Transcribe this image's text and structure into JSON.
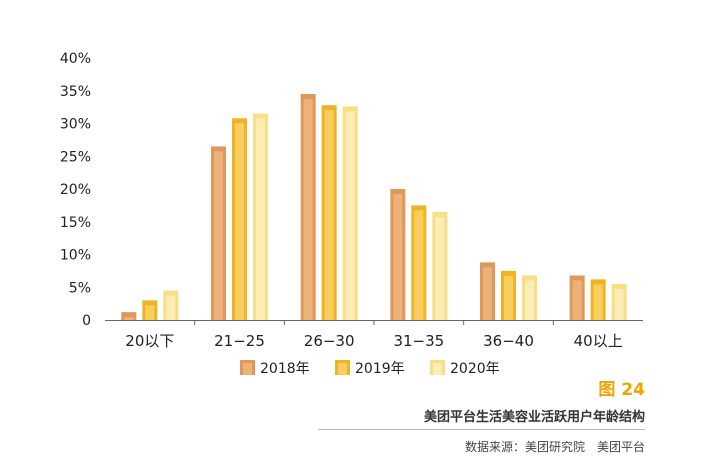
{
  "chart_data": {
    "type": "bar",
    "categories": [
      "20以下",
      "21−25",
      "26−30",
      "31−35",
      "36−40",
      "40以上"
    ],
    "series": [
      {
        "name": "2018年",
        "values": [
          1.2,
          26.5,
          34.5,
          20.0,
          8.8,
          6.8
        ],
        "color": "#e0985a",
        "inner": "#edb27a"
      },
      {
        "name": "2019年",
        "values": [
          3.0,
          30.8,
          32.8,
          17.5,
          7.5,
          6.2
        ],
        "color": "#f0b323",
        "inner": "#f8cf5e"
      },
      {
        "name": "2020年",
        "values": [
          4.5,
          31.5,
          32.6,
          16.5,
          6.8,
          5.5
        ],
        "color": "#f9de82",
        "inner": "#fcecb6"
      }
    ],
    "ylim": [
      0,
      40
    ],
    "yticks": [
      "0",
      "5%",
      "10%",
      "15%",
      "20%",
      "25%",
      "30%",
      "35%",
      "40%"
    ],
    "grid": false,
    "legend": "bottom"
  },
  "figure": {
    "label": "图 24",
    "title": "美团平台生活美容业活跃用户年龄结构",
    "source": "数据来源：美团研究院　美团平台"
  }
}
